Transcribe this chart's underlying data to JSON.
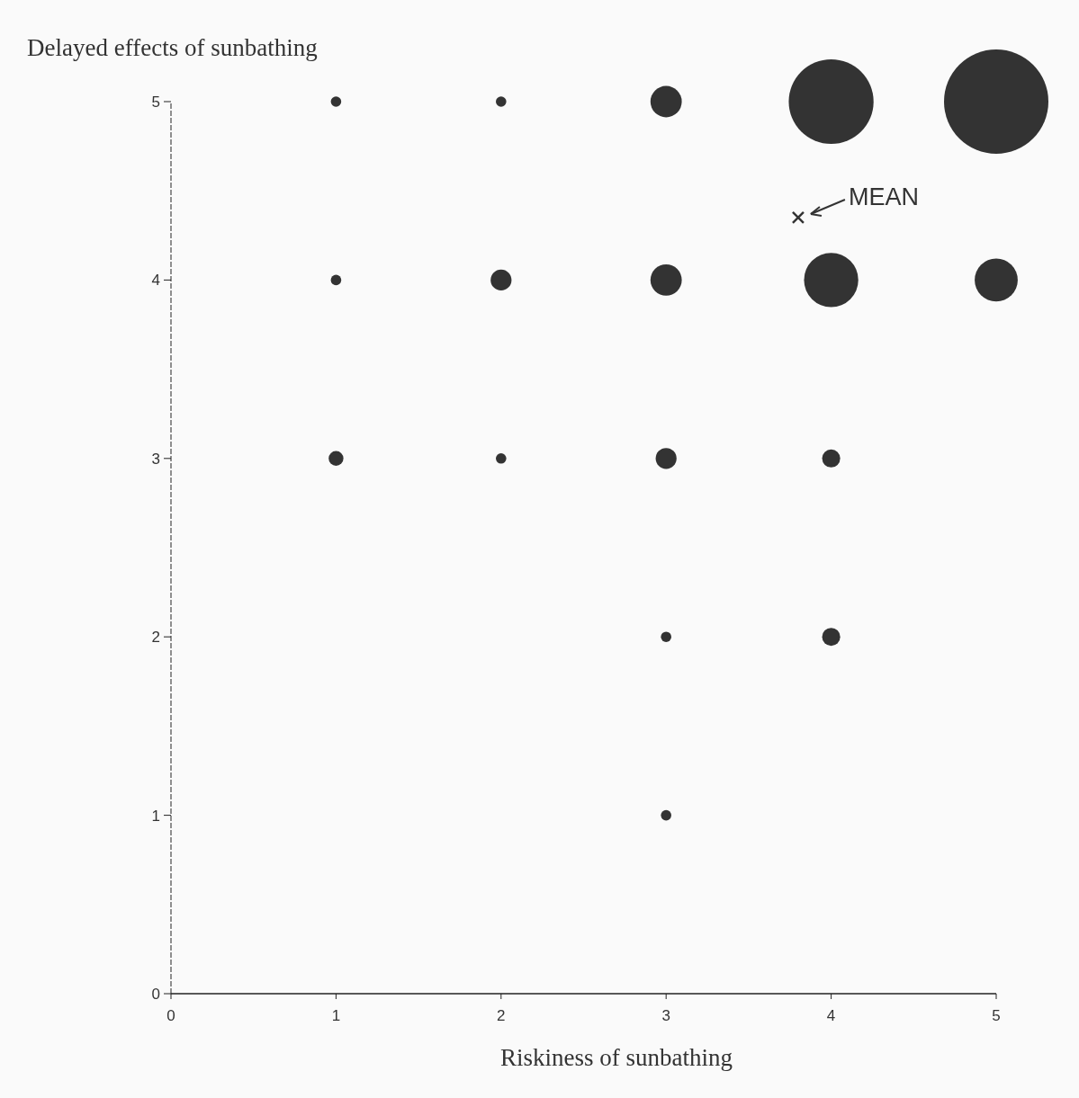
{
  "chart_data": {
    "type": "bubble",
    "ylabel": "Delayed effects of sunbathing",
    "xlabel": "Riskiness of sunbathing",
    "xlim": [
      0,
      5
    ],
    "ylim": [
      0,
      5
    ],
    "xticks": [
      0,
      1,
      2,
      3,
      4,
      5
    ],
    "yticks": [
      0,
      1,
      2,
      3,
      4,
      5
    ],
    "grid": false,
    "series": [
      {
        "color": "#333333",
        "x": [
          1,
          2,
          3,
          4,
          5,
          1,
          2,
          3,
          4,
          5,
          1,
          2,
          3,
          4,
          3,
          4,
          3
        ],
        "values": [
          5,
          5,
          5,
          5,
          5,
          4,
          4,
          4,
          4,
          4,
          3,
          3,
          3,
          3,
          2,
          2,
          1
        ],
        "sizes": [
          0.01,
          0.01,
          0.09,
          0.66,
          1,
          0.01,
          0.04,
          0.09,
          0.27,
          0.17,
          0.02,
          0.01,
          0.04,
          0.03,
          0.01,
          0.03,
          0.01
        ]
      },
      {
        "type": "scatter",
        "color": "#333333",
        "marker": "cross",
        "x": [
          3.8
        ],
        "values": [
          4.35
        ]
      }
    ],
    "annotations": [
      {
        "text": "MEAN",
        "x": 3.8,
        "y": 4.35
      }
    ]
  }
}
